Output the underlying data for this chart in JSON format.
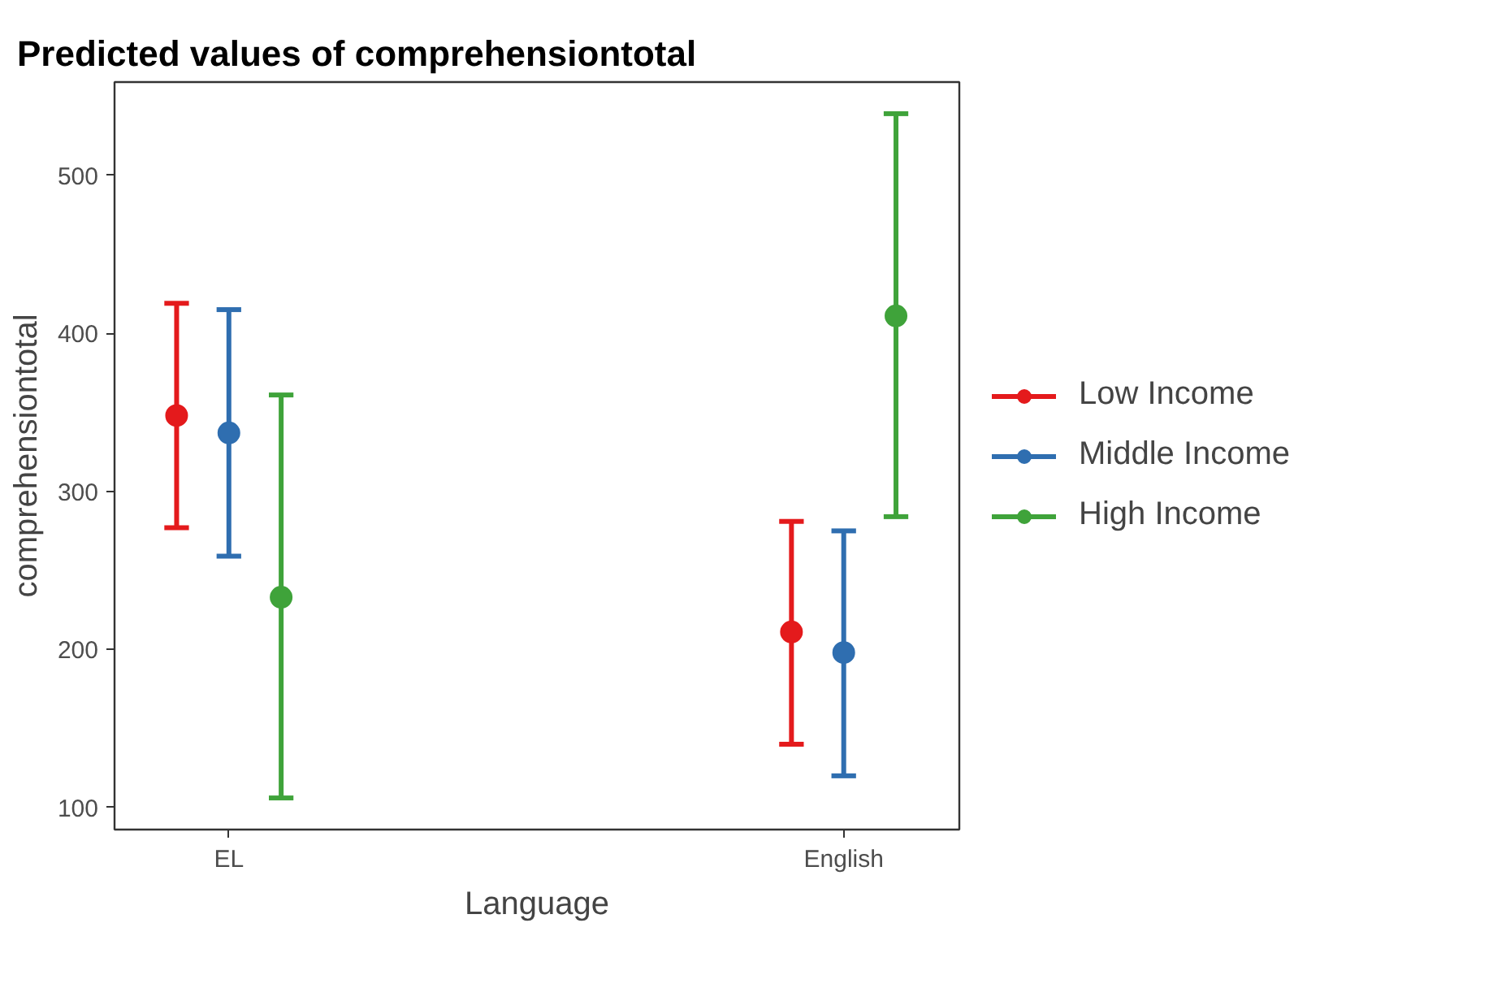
{
  "chart_data": {
    "type": "scatter",
    "title": "Predicted values of comprehensiontotal",
    "xlabel": "Language",
    "ylabel": "comprehensiontotal",
    "categories": [
      "EL",
      "English"
    ],
    "series": [
      {
        "name": "Low Income",
        "color": "#e41a1c",
        "values": [
          348,
          211
        ],
        "errors": [
          [
            277,
            419
          ],
          [
            140,
            281
          ]
        ]
      },
      {
        "name": "Middle Income",
        "color": "#2f6eb0",
        "values": [
          337,
          198
        ],
        "errors": [
          [
            259,
            415
          ],
          [
            120,
            275
          ]
        ]
      },
      {
        "name": "High Income",
        "color": "#3fa33a",
        "values": [
          233,
          411
        ],
        "errors": [
          [
            106,
            361
          ],
          [
            284,
            539
          ]
        ]
      }
    ],
    "ylim": [
      86,
      559
    ],
    "yticks": [
      100,
      200,
      300,
      400,
      500
    ],
    "grid": false,
    "legend": "right",
    "marker": "circle"
  }
}
